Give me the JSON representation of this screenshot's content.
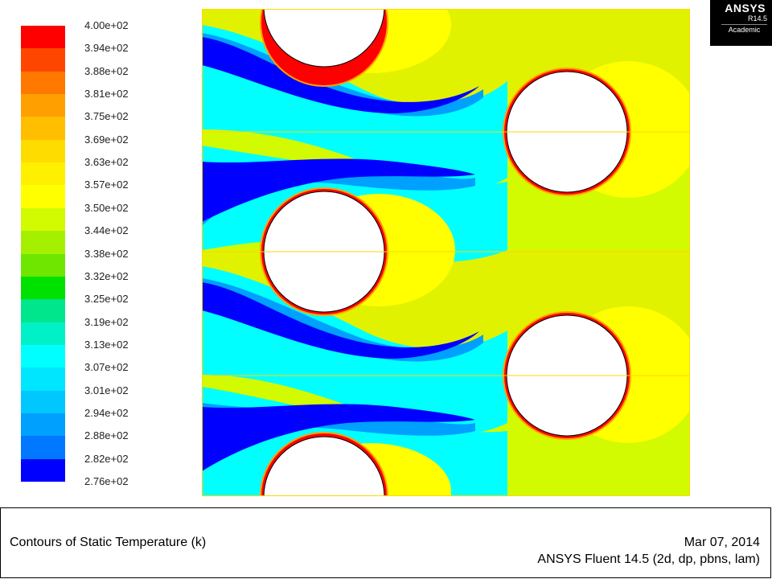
{
  "logo": {
    "brand": "ANSYS",
    "version": "R14.5",
    "edition": "Academic"
  },
  "legend": {
    "labels": [
      "4.00e+02",
      "3.94e+02",
      "3.88e+02",
      "3.81e+02",
      "3.75e+02",
      "3.69e+02",
      "3.63e+02",
      "3.57e+02",
      "3.50e+02",
      "3.44e+02",
      "3.38e+02",
      "3.32e+02",
      "3.25e+02",
      "3.19e+02",
      "3.13e+02",
      "3.07e+02",
      "3.01e+02",
      "2.94e+02",
      "2.88e+02",
      "2.82e+02",
      "2.76e+02"
    ],
    "colors": [
      "#ff0000",
      "#ff4600",
      "#ff7800",
      "#ffa000",
      "#ffbe00",
      "#ffdc00",
      "#fff000",
      "#ffff00",
      "#d2fa00",
      "#a5f000",
      "#6ee600",
      "#00e100",
      "#00e68c",
      "#00f0c8",
      "#00ffff",
      "#00e6ff",
      "#00c8ff",
      "#00a0ff",
      "#0078ff",
      "#0000ff"
    ]
  },
  "contour": {
    "domain_color": "#ffd700",
    "circle_fill": "#ffffff",
    "field_colors": {
      "hot": "#ff0000",
      "warm": "#ff7800",
      "mid": "#ffff00",
      "lukewarm": "#a5f000",
      "green": "#00e100",
      "cyan": "#00ffff",
      "cool": "#00a0ff",
      "cold": "#0000ff"
    }
  },
  "footer": {
    "title": "Contours of Static Temperature (k)",
    "date": "Mar 07, 2014",
    "solver": "ANSYS Fluent 14.5 (2d, dp, pbns, lam)"
  }
}
